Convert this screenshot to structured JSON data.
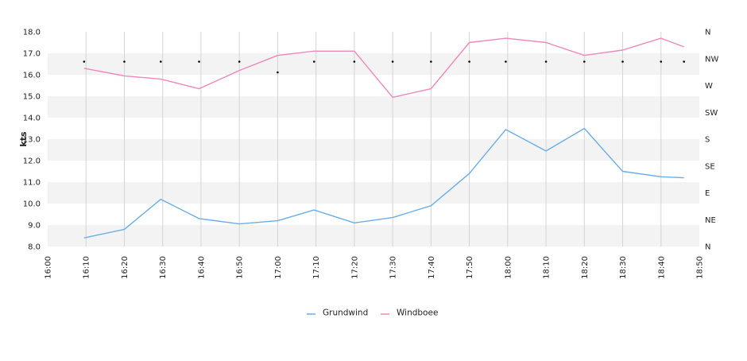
{
  "chart_data": {
    "type": "line",
    "ylabel": "kts",
    "ylim": [
      8.0,
      18.0
    ],
    "yticks": [
      "8.0",
      "9.0",
      "10.0",
      "11.0",
      "12.0",
      "13.0",
      "14.0",
      "15.0",
      "16.0",
      "17.0",
      "18.0"
    ],
    "x_range_minutes": [
      960,
      1130
    ],
    "xticks": [
      {
        "minute": 960,
        "label": "16:00"
      },
      {
        "minute": 970,
        "label": "16:10"
      },
      {
        "minute": 980,
        "label": "16:20"
      },
      {
        "minute": 990,
        "label": "16:30"
      },
      {
        "minute": 1000,
        "label": "16:40"
      },
      {
        "minute": 1010,
        "label": "16:50"
      },
      {
        "minute": 1020,
        "label": "17:00"
      },
      {
        "minute": 1030,
        "label": "17:10"
      },
      {
        "minute": 1040,
        "label": "17:20"
      },
      {
        "minute": 1050,
        "label": "17:30"
      },
      {
        "minute": 1060,
        "label": "17:40"
      },
      {
        "minute": 1070,
        "label": "17:50"
      },
      {
        "minute": 1080,
        "label": "18:00"
      },
      {
        "minute": 1090,
        "label": "18:10"
      },
      {
        "minute": 1100,
        "label": "18:20"
      },
      {
        "minute": 1110,
        "label": "18:30"
      },
      {
        "minute": 1120,
        "label": "18:40"
      },
      {
        "minute": 1130,
        "label": "18:50"
      }
    ],
    "direction_axis": {
      "labels": [
        "N",
        "NE",
        "E",
        "SE",
        "S",
        "SW",
        "W",
        "NW",
        "N"
      ],
      "range_degrees": [
        0,
        360
      ]
    },
    "series": [
      {
        "name": "Grundwind",
        "color": "#6aaee8",
        "x": [
          969.5,
          980,
          989.5,
          999.5,
          1010,
          1020,
          1029.5,
          1040,
          1050,
          1060,
          1070,
          1079.5,
          1090,
          1100,
          1110,
          1120,
          1126
        ],
        "values": [
          8.4,
          8.8,
          10.2,
          9.3,
          9.05,
          9.2,
          9.7,
          9.1,
          9.35,
          9.9,
          11.4,
          13.45,
          12.45,
          13.5,
          11.5,
          11.25,
          11.2
        ]
      },
      {
        "name": "Windboee",
        "color": "#ee88bb",
        "x": [
          969.5,
          980,
          989.5,
          999.5,
          1010,
          1020,
          1029.5,
          1040,
          1050,
          1060,
          1070,
          1079.5,
          1090,
          1100,
          1110,
          1120,
          1126
        ],
        "values": [
          16.3,
          15.95,
          15.8,
          15.35,
          16.2,
          16.9,
          17.1,
          17.1,
          14.95,
          15.35,
          17.5,
          17.7,
          17.5,
          16.9,
          17.15,
          17.7,
          17.3
        ]
      }
    ],
    "direction_series": {
      "x": [
        969.5,
        980,
        989.5,
        999.5,
        1010,
        1020,
        1029.5,
        1040,
        1050,
        1060,
        1070,
        1079.5,
        1090,
        1100,
        1110,
        1120,
        1126
      ],
      "degrees": [
        310,
        310,
        310,
        310,
        310,
        292,
        310,
        310,
        310,
        310,
        310,
        310,
        310,
        310,
        310,
        310,
        310
      ]
    },
    "grid": true,
    "legend": "bottom-center"
  }
}
